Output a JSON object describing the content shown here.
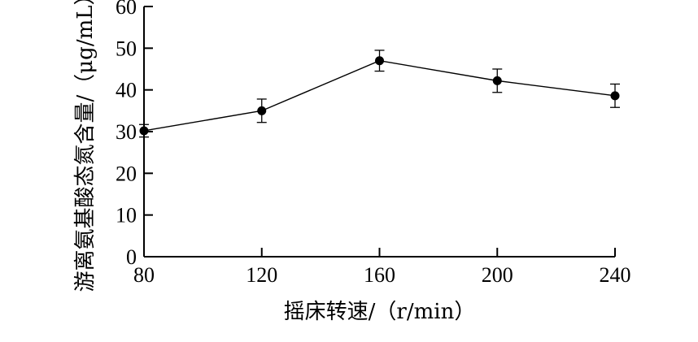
{
  "chart_data": {
    "type": "line",
    "title": "",
    "xlabel": "摇床转速/（r/min）",
    "ylabel": "游离氨基酸态氮含量/（μg/mL）",
    "x": [
      80,
      120,
      160,
      200,
      240
    ],
    "x_ticks": [
      "80",
      "120",
      "160",
      "200",
      "240"
    ],
    "y_ticks": [
      "0",
      "10",
      "20",
      "30",
      "40",
      "50",
      "60"
    ],
    "xlim": [
      80,
      240
    ],
    "ylim": [
      0,
      60
    ],
    "grid": false,
    "series": [
      {
        "values": [
          30.2,
          35.0,
          47.0,
          42.2,
          38.6
        ],
        "error": [
          1.5,
          2.8,
          2.5,
          2.8,
          2.8
        ]
      }
    ],
    "marker": "filled-circle",
    "color": "#000000"
  }
}
